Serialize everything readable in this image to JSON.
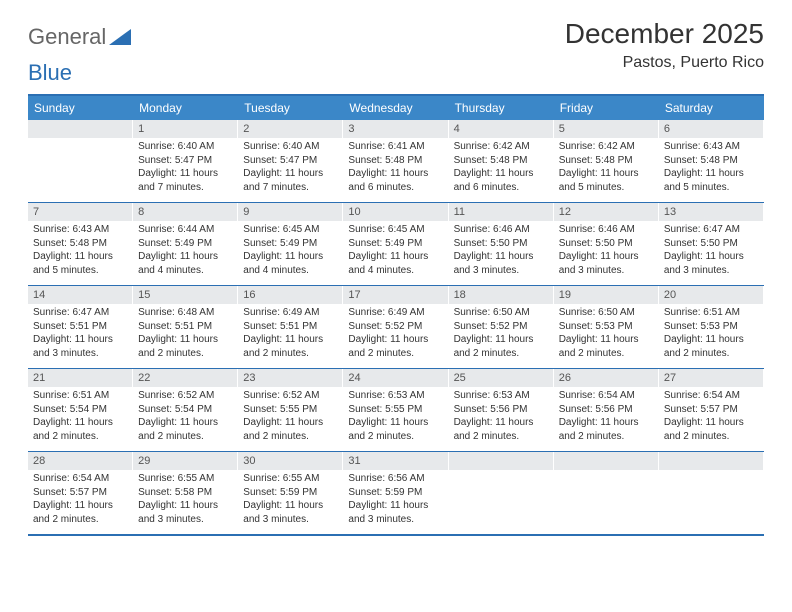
{
  "brand": {
    "part1": "General",
    "part2": "Blue"
  },
  "title": "December 2025",
  "location": "Pastos, Puerto Rico",
  "colors": {
    "header_bg": "#3b87c8",
    "border": "#2b6fb3",
    "daynum_bg": "#e7e9eb",
    "text": "#333333"
  },
  "day_names": [
    "Sunday",
    "Monday",
    "Tuesday",
    "Wednesday",
    "Thursday",
    "Friday",
    "Saturday"
  ],
  "start_offset": 1,
  "days": [
    {
      "n": 1,
      "sr": "6:40 AM",
      "ss": "5:47 PM",
      "dl": "11 hours and 7 minutes."
    },
    {
      "n": 2,
      "sr": "6:40 AM",
      "ss": "5:47 PM",
      "dl": "11 hours and 7 minutes."
    },
    {
      "n": 3,
      "sr": "6:41 AM",
      "ss": "5:48 PM",
      "dl": "11 hours and 6 minutes."
    },
    {
      "n": 4,
      "sr": "6:42 AM",
      "ss": "5:48 PM",
      "dl": "11 hours and 6 minutes."
    },
    {
      "n": 5,
      "sr": "6:42 AM",
      "ss": "5:48 PM",
      "dl": "11 hours and 5 minutes."
    },
    {
      "n": 6,
      "sr": "6:43 AM",
      "ss": "5:48 PM",
      "dl": "11 hours and 5 minutes."
    },
    {
      "n": 7,
      "sr": "6:43 AM",
      "ss": "5:48 PM",
      "dl": "11 hours and 5 minutes."
    },
    {
      "n": 8,
      "sr": "6:44 AM",
      "ss": "5:49 PM",
      "dl": "11 hours and 4 minutes."
    },
    {
      "n": 9,
      "sr": "6:45 AM",
      "ss": "5:49 PM",
      "dl": "11 hours and 4 minutes."
    },
    {
      "n": 10,
      "sr": "6:45 AM",
      "ss": "5:49 PM",
      "dl": "11 hours and 4 minutes."
    },
    {
      "n": 11,
      "sr": "6:46 AM",
      "ss": "5:50 PM",
      "dl": "11 hours and 3 minutes."
    },
    {
      "n": 12,
      "sr": "6:46 AM",
      "ss": "5:50 PM",
      "dl": "11 hours and 3 minutes."
    },
    {
      "n": 13,
      "sr": "6:47 AM",
      "ss": "5:50 PM",
      "dl": "11 hours and 3 minutes."
    },
    {
      "n": 14,
      "sr": "6:47 AM",
      "ss": "5:51 PM",
      "dl": "11 hours and 3 minutes."
    },
    {
      "n": 15,
      "sr": "6:48 AM",
      "ss": "5:51 PM",
      "dl": "11 hours and 2 minutes."
    },
    {
      "n": 16,
      "sr": "6:49 AM",
      "ss": "5:51 PM",
      "dl": "11 hours and 2 minutes."
    },
    {
      "n": 17,
      "sr": "6:49 AM",
      "ss": "5:52 PM",
      "dl": "11 hours and 2 minutes."
    },
    {
      "n": 18,
      "sr": "6:50 AM",
      "ss": "5:52 PM",
      "dl": "11 hours and 2 minutes."
    },
    {
      "n": 19,
      "sr": "6:50 AM",
      "ss": "5:53 PM",
      "dl": "11 hours and 2 minutes."
    },
    {
      "n": 20,
      "sr": "6:51 AM",
      "ss": "5:53 PM",
      "dl": "11 hours and 2 minutes."
    },
    {
      "n": 21,
      "sr": "6:51 AM",
      "ss": "5:54 PM",
      "dl": "11 hours and 2 minutes."
    },
    {
      "n": 22,
      "sr": "6:52 AM",
      "ss": "5:54 PM",
      "dl": "11 hours and 2 minutes."
    },
    {
      "n": 23,
      "sr": "6:52 AM",
      "ss": "5:55 PM",
      "dl": "11 hours and 2 minutes."
    },
    {
      "n": 24,
      "sr": "6:53 AM",
      "ss": "5:55 PM",
      "dl": "11 hours and 2 minutes."
    },
    {
      "n": 25,
      "sr": "6:53 AM",
      "ss": "5:56 PM",
      "dl": "11 hours and 2 minutes."
    },
    {
      "n": 26,
      "sr": "6:54 AM",
      "ss": "5:56 PM",
      "dl": "11 hours and 2 minutes."
    },
    {
      "n": 27,
      "sr": "6:54 AM",
      "ss": "5:57 PM",
      "dl": "11 hours and 2 minutes."
    },
    {
      "n": 28,
      "sr": "6:54 AM",
      "ss": "5:57 PM",
      "dl": "11 hours and 2 minutes."
    },
    {
      "n": 29,
      "sr": "6:55 AM",
      "ss": "5:58 PM",
      "dl": "11 hours and 3 minutes."
    },
    {
      "n": 30,
      "sr": "6:55 AM",
      "ss": "5:59 PM",
      "dl": "11 hours and 3 minutes."
    },
    {
      "n": 31,
      "sr": "6:56 AM",
      "ss": "5:59 PM",
      "dl": "11 hours and 3 minutes."
    }
  ],
  "labels": {
    "sunrise": "Sunrise:",
    "sunset": "Sunset:",
    "daylight": "Daylight:"
  }
}
